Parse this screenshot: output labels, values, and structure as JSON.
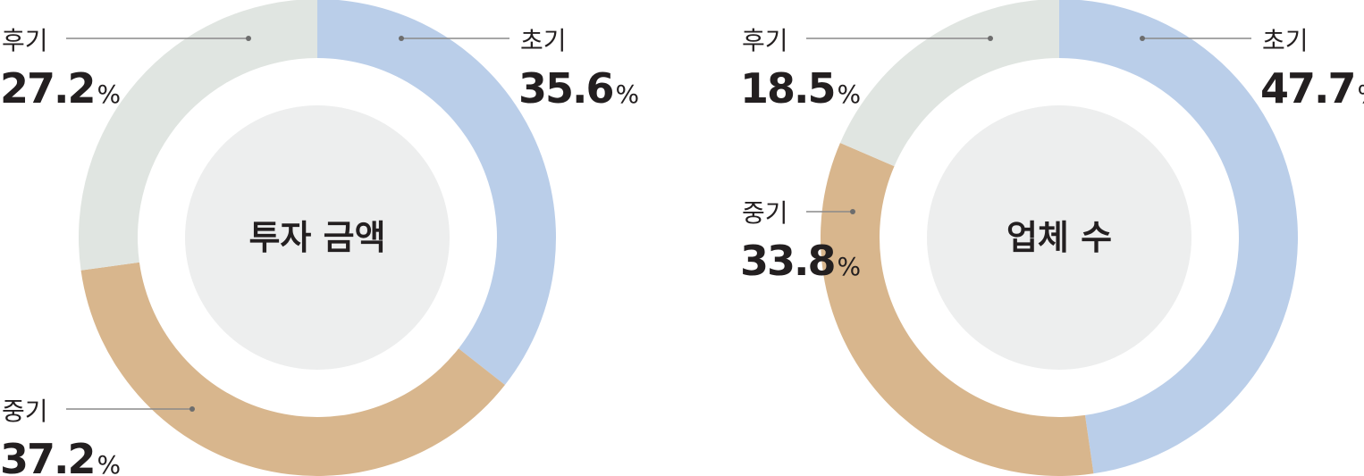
{
  "colors": {
    "early": "#bacee9",
    "mid": "#d8b68d",
    "late": "#e0e5e1",
    "inner": "#edeeee",
    "text": "#231f20"
  },
  "chart_data": [
    {
      "type": "pie",
      "title": "투자 금액",
      "unit": "%",
      "categories": [
        "초기",
        "중기",
        "후기"
      ],
      "values": [
        35.6,
        37.2,
        27.2
      ]
    },
    {
      "type": "pie",
      "title": "업체 수",
      "unit": "%",
      "categories": [
        "초기",
        "중기",
        "후기"
      ],
      "values": [
        47.7,
        33.8,
        18.5
      ]
    }
  ]
}
